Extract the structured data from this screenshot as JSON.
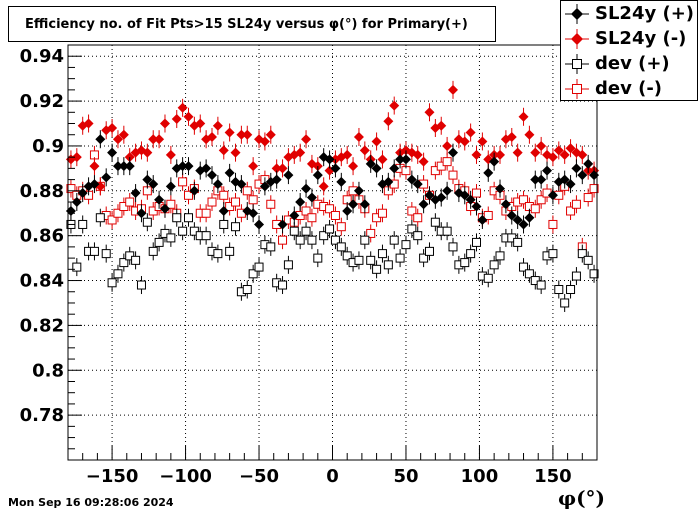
{
  "chart_data": {
    "type": "scatter",
    "title": "Efficiency no. of Fit Pts>15 SL24y versus φ(°) for Primary(+)",
    "xlabel": "φ(°)",
    "ylabel": "",
    "xlim": [
      -180,
      180
    ],
    "ylim": [
      0.76,
      0.945
    ],
    "xticks": [
      -150,
      -100,
      -50,
      0,
      50,
      100,
      150
    ],
    "yticks": [
      0.78,
      0.8,
      0.82,
      0.84,
      0.86,
      0.88,
      0.9,
      0.92,
      0.94
    ],
    "ytick_labels": [
      "0.78",
      "0.8",
      "0.82",
      "0.84",
      "0.86",
      "0.88",
      "0.9",
      "0.92",
      "0.94"
    ],
    "xtick_labels": [
      "−150",
      "−100",
      "−50",
      "0",
      "50",
      "100",
      "150"
    ],
    "grid": true,
    "legend_position": "top-right",
    "series": [
      {
        "name": "SL24y (+)",
        "marker": "filled-diamond",
        "color": "#000000",
        "x": [
          -178,
          -174,
          -170,
          -166,
          -162,
          -158,
          -154,
          -150,
          -146,
          -142,
          -138,
          -134,
          -130,
          -126,
          -122,
          -118,
          -114,
          -110,
          -106,
          -102,
          -98,
          -94,
          -90,
          -86,
          -82,
          -78,
          -74,
          -70,
          -66,
          -62,
          -58,
          -54,
          -50,
          -46,
          -42,
          -38,
          -34,
          -30,
          -26,
          -22,
          -18,
          -14,
          -10,
          -6,
          -2,
          2,
          6,
          10,
          14,
          18,
          22,
          26,
          30,
          34,
          38,
          42,
          46,
          50,
          54,
          58,
          62,
          66,
          70,
          74,
          78,
          82,
          86,
          90,
          94,
          98,
          102,
          106,
          110,
          114,
          118,
          122,
          126,
          130,
          134,
          138,
          142,
          146,
          150,
          154,
          158,
          162,
          166,
          170,
          174,
          178
        ],
        "y": [
          0.871,
          0.875,
          0.879,
          0.882,
          0.883,
          0.903,
          0.886,
          0.897,
          0.891,
          0.891,
          0.891,
          0.879,
          0.87,
          0.885,
          0.883,
          0.876,
          0.872,
          0.882,
          0.89,
          0.891,
          0.891,
          0.88,
          0.889,
          0.89,
          0.887,
          0.883,
          0.871,
          0.888,
          0.884,
          0.883,
          0.871,
          0.87,
          0.865,
          0.882,
          0.884,
          0.885,
          0.865,
          0.887,
          0.869,
          0.875,
          0.881,
          0.877,
          0.887,
          0.895,
          0.894,
          0.89,
          0.884,
          0.871,
          0.874,
          0.88,
          0.874,
          0.892,
          0.89,
          0.883,
          0.884,
          0.89,
          0.894,
          0.894,
          0.885,
          0.883,
          0.874,
          0.878,
          0.876,
          0.877,
          0.88,
          0.897,
          0.879,
          0.878,
          0.876,
          0.873,
          0.867,
          0.888,
          0.893,
          0.881,
          0.874,
          0.869,
          0.867,
          0.865,
          0.868,
          0.885,
          0.885,
          0.889,
          0.878,
          0.884,
          0.885,
          0.883,
          0.89,
          0.887,
          0.892,
          0.887
        ]
      },
      {
        "name": "SL24y (-)",
        "marker": "filled-circle",
        "color": "#e00000",
        "x": [
          -178,
          -174,
          -170,
          -166,
          -162,
          -158,
          -154,
          -150,
          -146,
          -142,
          -138,
          -134,
          -130,
          -126,
          -122,
          -118,
          -114,
          -110,
          -106,
          -102,
          -98,
          -94,
          -90,
          -86,
          -82,
          -78,
          -74,
          -70,
          -66,
          -62,
          -58,
          -54,
          -50,
          -46,
          -42,
          -38,
          -34,
          -30,
          -26,
          -22,
          -18,
          -14,
          -10,
          -6,
          -2,
          2,
          6,
          10,
          14,
          18,
          22,
          26,
          30,
          34,
          38,
          42,
          46,
          50,
          54,
          58,
          62,
          66,
          70,
          74,
          78,
          82,
          86,
          90,
          94,
          98,
          102,
          106,
          110,
          114,
          118,
          122,
          126,
          130,
          134,
          138,
          142,
          146,
          150,
          154,
          158,
          162,
          166,
          170,
          174,
          178
        ],
        "y": [
          0.894,
          0.895,
          0.909,
          0.91,
          0.891,
          0.882,
          0.907,
          0.908,
          0.903,
          0.905,
          0.895,
          0.897,
          0.898,
          0.897,
          0.903,
          0.903,
          0.91,
          0.896,
          0.912,
          0.917,
          0.913,
          0.909,
          0.91,
          0.903,
          0.904,
          0.909,
          0.898,
          0.906,
          0.897,
          0.905,
          0.905,
          0.891,
          0.903,
          0.902,
          0.905,
          0.89,
          0.89,
          0.895,
          0.896,
          0.897,
          0.903,
          0.892,
          0.891,
          0.882,
          0.889,
          0.894,
          0.895,
          0.896,
          0.891,
          0.904,
          0.898,
          0.894,
          0.902,
          0.894,
          0.911,
          0.918,
          0.897,
          0.898,
          0.897,
          0.896,
          0.893,
          0.915,
          0.908,
          0.909,
          0.9,
          0.925,
          0.903,
          0.902,
          0.906,
          0.896,
          0.902,
          0.894,
          0.896,
          0.896,
          0.903,
          0.904,
          0.897,
          0.913,
          0.905,
          0.897,
          0.9,
          0.896,
          0.895,
          0.898,
          0.896,
          0.899,
          0.897,
          0.896,
          0.889,
          0.889
        ]
      },
      {
        "name": "dev (+)",
        "marker": "open-square",
        "color": "#000000",
        "x": [
          -178,
          -174,
          -170,
          -166,
          -162,
          -158,
          -154,
          -150,
          -146,
          -142,
          -138,
          -134,
          -130,
          -126,
          -122,
          -118,
          -114,
          -110,
          -106,
          -102,
          -98,
          -94,
          -90,
          -86,
          -82,
          -78,
          -74,
          -70,
          -66,
          -62,
          -58,
          -54,
          -50,
          -46,
          -42,
          -38,
          -34,
          -30,
          -26,
          -22,
          -18,
          -14,
          -10,
          -6,
          -2,
          2,
          6,
          10,
          14,
          18,
          22,
          26,
          30,
          34,
          38,
          42,
          46,
          50,
          54,
          58,
          62,
          66,
          70,
          74,
          78,
          82,
          86,
          90,
          94,
          98,
          102,
          106,
          110,
          114,
          118,
          122,
          126,
          130,
          134,
          138,
          142,
          146,
          150,
          154,
          158,
          162,
          166,
          170,
          174,
          178
        ],
        "y": [
          0.865,
          0.846,
          0.865,
          0.853,
          0.853,
          0.868,
          0.852,
          0.839,
          0.843,
          0.848,
          0.851,
          0.849,
          0.838,
          0.866,
          0.853,
          0.857,
          0.861,
          0.859,
          0.868,
          0.862,
          0.868,
          0.862,
          0.86,
          0.86,
          0.853,
          0.852,
          0.865,
          0.853,
          0.864,
          0.835,
          0.836,
          0.843,
          0.846,
          0.856,
          0.855,
          0.839,
          0.838,
          0.847,
          0.862,
          0.858,
          0.862,
          0.858,
          0.85,
          0.86,
          0.863,
          0.858,
          0.855,
          0.851,
          0.848,
          0.849,
          0.858,
          0.849,
          0.845,
          0.852,
          0.847,
          0.858,
          0.85,
          0.856,
          0.863,
          0.86,
          0.85,
          0.853,
          0.866,
          0.862,
          0.862,
          0.855,
          0.847,
          0.848,
          0.852,
          0.857,
          0.842,
          0.841,
          0.847,
          0.851,
          0.859,
          0.859,
          0.857,
          0.846,
          0.843,
          0.84,
          0.838,
          0.851,
          0.852,
          0.836,
          0.83,
          0.836,
          0.842,
          0.852,
          0.849,
          0.843
        ]
      },
      {
        "name": "dev (-)",
        "marker": "open-square",
        "color": "#e00000",
        "x": [
          -178,
          -174,
          -170,
          -166,
          -162,
          -158,
          -154,
          -150,
          -146,
          -142,
          -138,
          -134,
          -130,
          -126,
          -122,
          -118,
          -114,
          -110,
          -106,
          -102,
          -98,
          -94,
          -90,
          -86,
          -82,
          -78,
          -74,
          -70,
          -66,
          -62,
          -58,
          -54,
          -50,
          -46,
          -42,
          -38,
          -34,
          -30,
          -26,
          -22,
          -18,
          -14,
          -10,
          -6,
          -2,
          2,
          6,
          10,
          14,
          18,
          22,
          26,
          30,
          34,
          38,
          42,
          46,
          50,
          54,
          58,
          62,
          66,
          70,
          74,
          78,
          82,
          86,
          90,
          94,
          98,
          102,
          106,
          110,
          114,
          118,
          122,
          126,
          130,
          134,
          138,
          142,
          146,
          150,
          154,
          158,
          162,
          166,
          170,
          174,
          178
        ],
        "y": [
          0.881,
          0.878,
          0.88,
          0.878,
          0.896,
          0.882,
          0.869,
          0.867,
          0.87,
          0.873,
          0.875,
          0.871,
          0.872,
          0.88,
          0.871,
          0.873,
          0.872,
          0.874,
          0.87,
          0.884,
          0.878,
          0.881,
          0.87,
          0.87,
          0.875,
          0.88,
          0.878,
          0.873,
          0.875,
          0.87,
          0.88,
          0.876,
          0.883,
          0.885,
          0.874,
          0.865,
          0.858,
          0.867,
          0.866,
          0.869,
          0.871,
          0.868,
          0.874,
          0.873,
          0.872,
          0.869,
          0.864,
          0.876,
          0.88,
          0.876,
          0.872,
          0.861,
          0.868,
          0.87,
          0.88,
          0.883,
          0.89,
          0.889,
          0.871,
          0.868,
          0.883,
          0.878,
          0.889,
          0.891,
          0.893,
          0.887,
          0.881,
          0.88,
          0.873,
          0.879,
          0.868,
          0.869,
          0.88,
          0.878,
          0.871,
          0.873,
          0.875,
          0.876,
          0.873,
          0.872,
          0.876,
          0.879,
          0.865,
          0.878,
          0.882,
          0.871,
          0.874,
          0.855,
          0.877,
          0.881
        ]
      }
    ]
  },
  "footer": {
    "timestamp": "Mon Sep 16 09:28:06 2024"
  }
}
